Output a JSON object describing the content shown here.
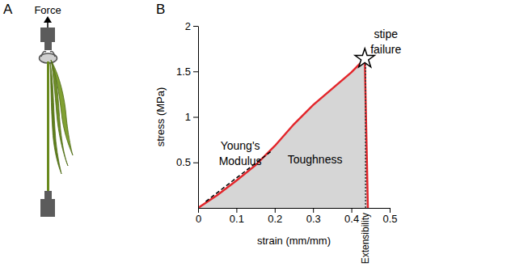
{
  "chart_data": {
    "type": "line",
    "panel_label": "B",
    "x_label": "strain (mm/mm)",
    "y_label": "stress (MPa)",
    "xlim": [
      0,
      0.5
    ],
    "ylim": [
      0,
      2
    ],
    "xticks": [
      0,
      0.1,
      0.2,
      0.3,
      0.4,
      0.5
    ],
    "yticks": [
      0.5,
      1,
      1.5,
      2
    ],
    "series": [
      {
        "type": "area",
        "color": "#e3262b",
        "line_style": "solid",
        "x": [
          0,
          0.05,
          0.1,
          0.15,
          0.2,
          0.25,
          0.3,
          0.35,
          0.4,
          0.435,
          0.443
        ],
        "values": [
          0,
          0.14,
          0.3,
          0.47,
          0.68,
          0.92,
          1.13,
          1.31,
          1.49,
          1.64,
          0
        ]
      },
      {
        "type": "line",
        "color": "#000000",
        "line_style": "dashed",
        "x": [
          0.02,
          0.19
        ],
        "values": [
          0.07,
          0.62
        ]
      },
      {
        "type": "scatter",
        "color": "#000000",
        "marker": "star",
        "x": [
          0.435
        ],
        "values": [
          1.64
        ]
      },
      {
        "type": "line",
        "color": "#333333",
        "line_style": "dotted",
        "x": [
          0.437,
          0.437
        ],
        "values": [
          0,
          1.64
        ]
      }
    ],
    "annotations": [
      {
        "text": "Young's\nModulus",
        "x": 0.11,
        "y": 0.6
      },
      {
        "text": "Toughness",
        "x": 0.305,
        "y": 0.53
      },
      {
        "text": "stipe\nfailure",
        "x": 0.49,
        "y": 1.83
      },
      {
        "text": "Extensibility",
        "x": 0.437
      }
    ]
  },
  "panel_a": {
    "label": "A",
    "arrow_label": "Force"
  }
}
